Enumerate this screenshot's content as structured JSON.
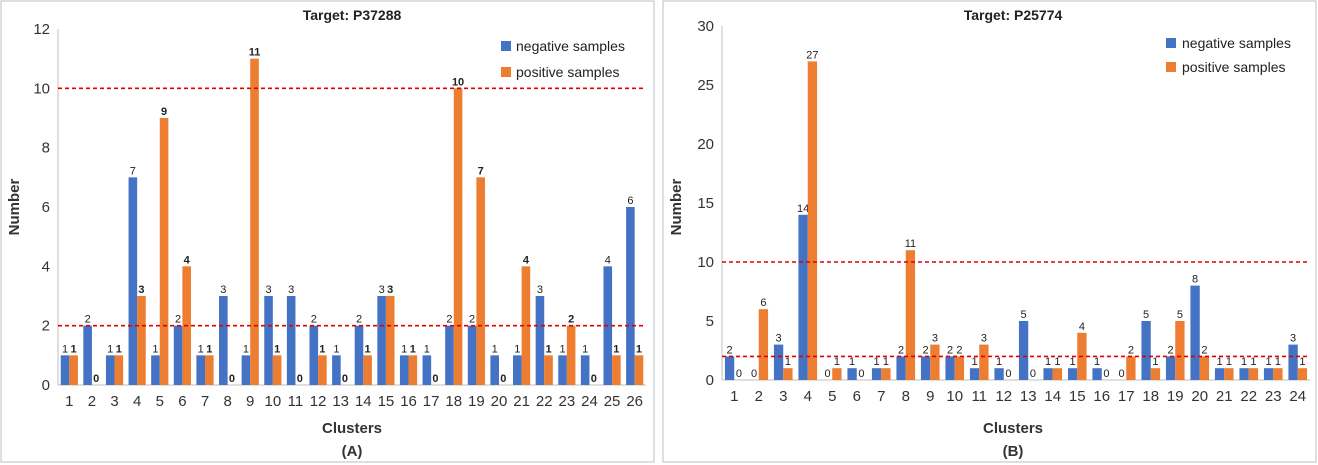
{
  "charts": [
    {
      "title": "Target: P37288",
      "caption": "(A)",
      "chart_data": {
        "type": "bar",
        "title": "Target: P37288",
        "xlabel": "Clusters",
        "ylabel": "Number",
        "ylim": [
          0,
          12
        ],
        "yticks": [
          "0",
          "2",
          "4",
          "6",
          "8",
          "10",
          "12"
        ],
        "categories": [
          "1",
          "2",
          "3",
          "4",
          "5",
          "6",
          "7",
          "8",
          "9",
          "10",
          "11",
          "12",
          "13",
          "14",
          "15",
          "16",
          "17",
          "18",
          "19",
          "20",
          "21",
          "22",
          "23",
          "24",
          "25",
          "26"
        ],
        "series": [
          {
            "name": "negative samples",
            "color": "#4472c4",
            "values": [
              1,
              2,
              1,
              7,
              1,
              2,
              1,
              3,
              1,
              3,
              3,
              2,
              1,
              2,
              3,
              1,
              1,
              2,
              2,
              1,
              1,
              3,
              1,
              1,
              4,
              6
            ]
          },
          {
            "name": "positive samples",
            "color": "#ed7d31",
            "values": [
              1,
              0,
              1,
              3,
              9,
              4,
              1,
              0,
              11,
              1,
              0,
              1,
              0,
              1,
              3,
              1,
              0,
              10,
              7,
              0,
              4,
              1,
              2,
              0,
              1,
              1
            ]
          }
        ],
        "thresholds": [
          2,
          10
        ],
        "threshold_color": "#e00000",
        "legend_position": "top-right",
        "grid": false
      }
    },
    {
      "title": "Target: P25774",
      "caption": "(B)",
      "chart_data": {
        "type": "bar",
        "title": "Target: P25774",
        "xlabel": "Clusters",
        "ylabel": "Number",
        "ylim": [
          0,
          30
        ],
        "yticks": [
          "0",
          "5",
          "10",
          "15",
          "20",
          "25",
          "30"
        ],
        "categories": [
          "1",
          "2",
          "3",
          "4",
          "5",
          "6",
          "7",
          "8",
          "9",
          "10",
          "11",
          "12",
          "13",
          "14",
          "15",
          "16",
          "17",
          "18",
          "19",
          "20",
          "21",
          "22",
          "23",
          "24"
        ],
        "series": [
          {
            "name": "negative samples",
            "color": "#4472c4",
            "values": [
              2,
              0,
              3,
              14,
              0,
              1,
              1,
              2,
              2,
              2,
              1,
              1,
              5,
              1,
              1,
              1,
              0,
              5,
              2,
              8,
              1,
              1,
              1,
              3
            ]
          },
          {
            "name": "positive samples",
            "color": "#ed7d31",
            "values": [
              0,
              6,
              1,
              27,
              1,
              0,
              1,
              11,
              3,
              2,
              3,
              0,
              0,
              1,
              4,
              0,
              2,
              1,
              5,
              2,
              1,
              1,
              1,
              1
            ]
          }
        ],
        "thresholds": [
          2,
          10
        ],
        "threshold_color": "#e00000",
        "legend_position": "top-right",
        "grid": false
      }
    }
  ]
}
